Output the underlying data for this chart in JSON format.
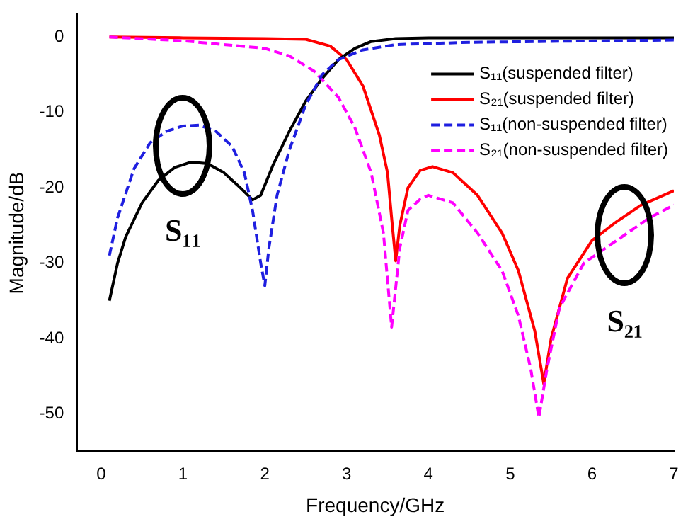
{
  "chart_data": {
    "type": "line",
    "xlabel": "Frequency/GHz",
    "ylabel": "Magnitude/dB",
    "xlim": [
      -0.3,
      7
    ],
    "ylim": [
      -55,
      3
    ],
    "xticks": [
      0,
      1,
      2,
      3,
      4,
      5,
      6,
      7
    ],
    "yticks": [
      0,
      -10,
      -20,
      -30,
      -40,
      -50
    ],
    "grid": false,
    "legend": "top right",
    "marker": "none",
    "series": [
      {
        "name": "S₁₁(suspended filter)",
        "color": "#000000",
        "line_style": "solid",
        "x": [
          0.1,
          0.2,
          0.3,
          0.5,
          0.7,
          0.9,
          1.1,
          1.3,
          1.5,
          1.7,
          1.85,
          1.95,
          2.1,
          2.3,
          2.5,
          2.7,
          2.9,
          3.1,
          3.3,
          3.6,
          4,
          7
        ],
        "values": [
          -35,
          -30,
          -26.5,
          -22,
          -19,
          -17.3,
          -16.6,
          -16.8,
          -18,
          -20,
          -21.6,
          -21,
          -17,
          -12.5,
          -8.5,
          -5.5,
          -3,
          -1.5,
          -0.6,
          -0.2,
          -0.1,
          -0.1
        ]
      },
      {
        "name": "S₂₁(suspended filter)",
        "color": "#ff0000",
        "line_style": "solid",
        "x": [
          0.1,
          1,
          2,
          2.5,
          2.8,
          3.0,
          3.2,
          3.4,
          3.5,
          3.55,
          3.6,
          3.65,
          3.75,
          3.9,
          4.05,
          4.3,
          4.6,
          4.9,
          5.1,
          5.3,
          5.41,
          5.5,
          5.7,
          6.0,
          6.3,
          6.6,
          7
        ],
        "values": [
          0,
          -0.1,
          -0.2,
          -0.3,
          -1.2,
          -3,
          -6.5,
          -13,
          -18,
          -24,
          -29.7,
          -25,
          -20,
          -17.7,
          -17.2,
          -18,
          -21,
          -26,
          -31,
          -39,
          -46,
          -40,
          -32,
          -27,
          -24.5,
          -22.3,
          -20.4
        ]
      },
      {
        "name": "S₁₁(non-suspended filter)",
        "color": "#1f1fe0",
        "line_style": "dashed",
        "x": [
          0.1,
          0.2,
          0.4,
          0.6,
          0.8,
          1.0,
          1.2,
          1.4,
          1.6,
          1.75,
          1.85,
          1.95,
          2.0,
          2.05,
          2.15,
          2.3,
          2.5,
          2.7,
          2.9,
          3.2,
          3.6,
          4.5,
          7
        ],
        "values": [
          -29,
          -24,
          -17.5,
          -14,
          -12.5,
          -11.8,
          -11.7,
          -12.5,
          -14.5,
          -18,
          -23,
          -30,
          -33,
          -28,
          -21,
          -15,
          -9,
          -5,
          -3,
          -1.7,
          -1,
          -0.7,
          -0.4
        ]
      },
      {
        "name": "S₂₁(non-suspended filter)",
        "color": "#ff00ff",
        "line_style": "dashed",
        "x": [
          0.1,
          1,
          2,
          2.3,
          2.6,
          2.9,
          3.1,
          3.3,
          3.45,
          3.55,
          3.65,
          3.75,
          3.9,
          4.0,
          4.3,
          4.6,
          4.9,
          5.1,
          5.25,
          5.35,
          5.45,
          5.6,
          5.9,
          6.3,
          6.7,
          7
        ],
        "values": [
          0,
          -0.5,
          -1.5,
          -2.5,
          -4.5,
          -8,
          -12,
          -18,
          -26,
          -38.5,
          -28,
          -23,
          -21.5,
          -21,
          -22,
          -26,
          -31,
          -37,
          -44,
          -50.5,
          -44,
          -36,
          -30,
          -27,
          -24,
          -22.3
        ]
      }
    ],
    "annotations": [
      "S₁₁",
      "S₂₁"
    ]
  }
}
